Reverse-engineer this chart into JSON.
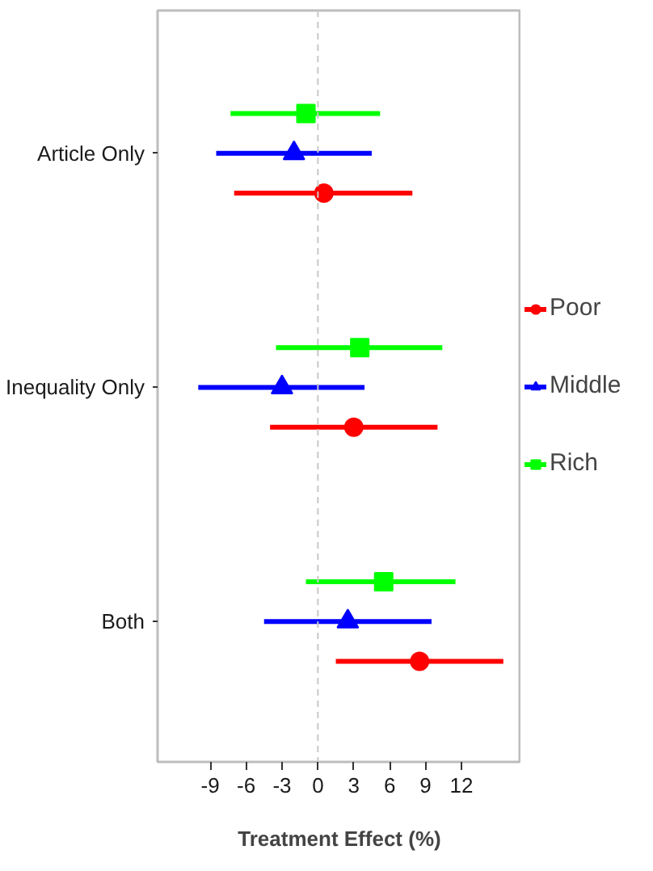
{
  "chart_data": {
    "type": "scatter",
    "orientation": "horizontal",
    "xlabel": "Treatment Effect (%)",
    "categories": [
      "Article Only",
      "Inequality Only",
      "Both"
    ],
    "xlim": [
      -13.4,
      17
    ],
    "xticks": [
      -9,
      -6,
      -3,
      0,
      3,
      6,
      9,
      12
    ],
    "series": [
      {
        "name": "Poor",
        "color": "#ff0000",
        "marker": "circle",
        "values": [
          0.5,
          3.0,
          8.5
        ],
        "errors": [
          [
            -7.0,
            7.9
          ],
          [
            -4.0,
            10.0
          ],
          [
            1.5,
            15.5
          ]
        ]
      },
      {
        "name": "Middle",
        "color": "#0000ff",
        "marker": "triangle",
        "values": [
          -2.0,
          -3.0,
          2.5
        ],
        "errors": [
          [
            -8.5,
            4.5
          ],
          [
            -10.0,
            3.9
          ],
          [
            -4.5,
            9.5
          ]
        ]
      },
      {
        "name": "Rich",
        "color": "#00ff00",
        "marker": "square",
        "values": [
          -1.0,
          3.5,
          5.5
        ],
        "errors": [
          [
            -7.3,
            5.2
          ],
          [
            -3.5,
            10.4
          ],
          [
            -1.0,
            11.5
          ]
        ]
      }
    ],
    "ref_lines": [
      {
        "axis": "x",
        "value": 0,
        "color": "#c8c8c8",
        "line_style": "dashed"
      }
    ],
    "legend": "right",
    "grid": false
  }
}
